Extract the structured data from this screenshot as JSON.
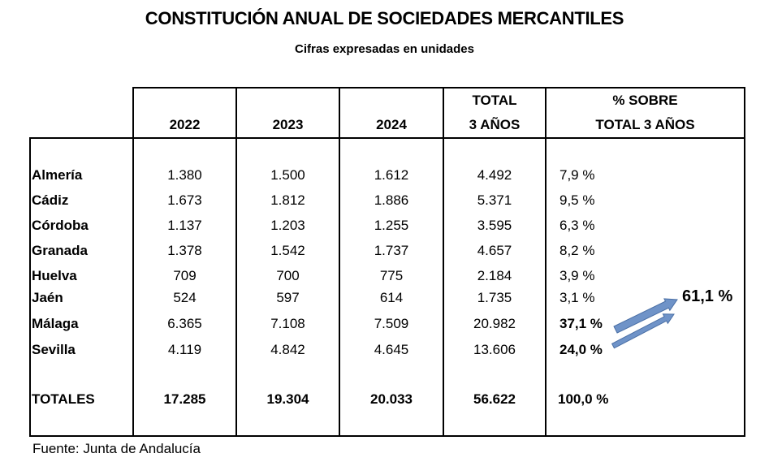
{
  "title": "CONSTITUCIÓN ANUAL DE SOCIEDADES MERCANTILES",
  "subtitle": "Cifras expresadas en unidades",
  "table": {
    "headers": [
      {
        "line1": "",
        "line2": "2022"
      },
      {
        "line1": "",
        "line2": "2023"
      },
      {
        "line1": "",
        "line2": "2024"
      },
      {
        "line1": "TOTAL",
        "line2": "3 AÑOS"
      },
      {
        "line1": "% SOBRE",
        "line2": "TOTAL 3 AÑOS"
      }
    ],
    "rows": [
      {
        "name": "Almería",
        "y2022": "1.380",
        "y2023": "1.500",
        "y2024": "1.612",
        "total": "4.492",
        "pct": "7,9 %"
      },
      {
        "name": "Cádiz",
        "y2022": "1.673",
        "y2023": "1.812",
        "y2024": "1.886",
        "total": "5.371",
        "pct": "9,5 %"
      },
      {
        "name": "Córdoba",
        "y2022": "1.137",
        "y2023": "1.203",
        "y2024": "1.255",
        "total": "3.595",
        "pct": "6,3 %"
      },
      {
        "name": "Granada",
        "y2022": "1.378",
        "y2023": "1.542",
        "y2024": "1.737",
        "total": "4.657",
        "pct": "8,2 %"
      },
      {
        "name": "Huelva",
        "y2022": "709",
        "y2023": "700",
        "y2024": "775",
        "total": "2.184",
        "pct": "3,9 %"
      },
      {
        "name": "Jaén",
        "y2022": "524",
        "y2023": "597",
        "y2024": "614",
        "total": "1.735",
        "pct": "3,1 %"
      },
      {
        "name": "Málaga",
        "y2022": "6.365",
        "y2023": "7.108",
        "y2024": "7.509",
        "total": "20.982",
        "pct": "37,1 %"
      },
      {
        "name": "Sevilla",
        "y2022": "4.119",
        "y2023": "4.842",
        "y2024": "4.645",
        "total": "13.606",
        "pct": "24,0 %"
      }
    ],
    "totals": {
      "name": "TOTALES",
      "y2022": "17.285",
      "y2023": "19.304",
      "y2024": "20.033",
      "total": "56.622",
      "pct": "100,0 %"
    }
  },
  "annotation": {
    "combined_pct": "61,1 %",
    "arrow_color": "#6f93c8",
    "arrow_border": "#4a6fa5"
  },
  "footer": "Fuente: Junta de Andalucía"
}
